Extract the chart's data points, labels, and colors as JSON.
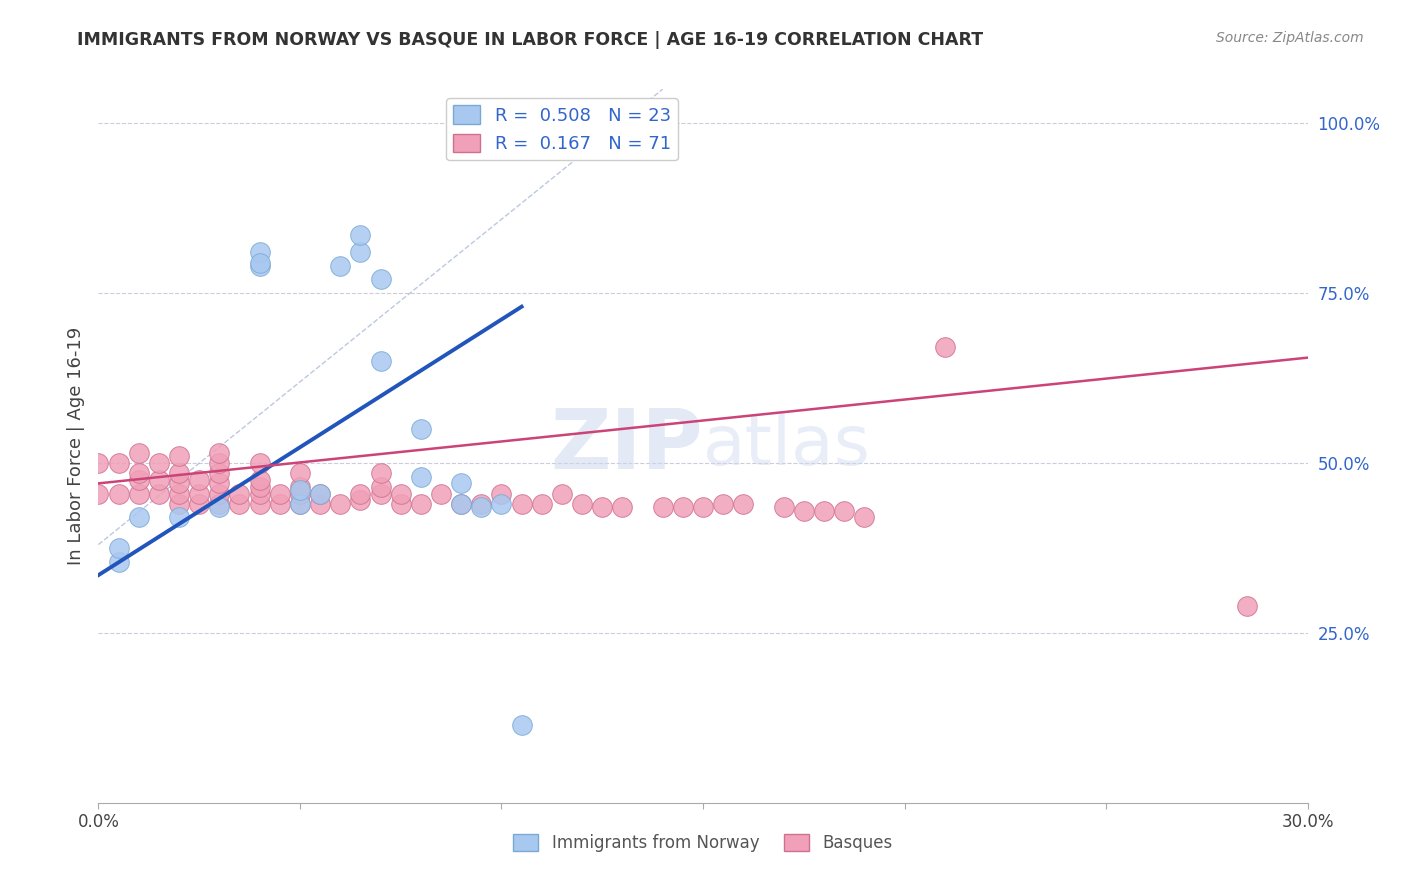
{
  "title": "IMMIGRANTS FROM NORWAY VS BASQUE IN LABOR FORCE | AGE 16-19 CORRELATION CHART",
  "source": "Source: ZipAtlas.com",
  "ylabel": "In Labor Force | Age 16-19",
  "xlim": [
    0.0,
    0.3
  ],
  "ylim": [
    0.0,
    1.05
  ],
  "xticks": [
    0.0,
    0.05,
    0.1,
    0.15,
    0.2,
    0.25,
    0.3
  ],
  "xticklabels": [
    "0.0%",
    "",
    "",
    "",
    "",
    "",
    "30.0%"
  ],
  "yticks_right": [
    0.25,
    0.5,
    0.75,
    1.0
  ],
  "ytick_right_labels": [
    "25.0%",
    "50.0%",
    "75.0%",
    "100.0%"
  ],
  "norway_color": "#a8c8f0",
  "norway_edge": "#7aaad4",
  "basque_color": "#f0a0b8",
  "basque_edge": "#d07090",
  "norway_R": 0.508,
  "norway_N": 23,
  "basque_R": 0.167,
  "basque_N": 71,
  "trend_norway_color": "#2255bb",
  "trend_basque_color": "#cc4477",
  "diag_color": "#aabbd8",
  "legend_R_color": "#3366cc",
  "background_color": "#ffffff",
  "grid_color": "#ccccdd",
  "watermark": "ZIPatlas",
  "norway_x": [
    0.005,
    0.005,
    0.01,
    0.02,
    0.03,
    0.04,
    0.04,
    0.04,
    0.05,
    0.05,
    0.055,
    0.06,
    0.065,
    0.065,
    0.07,
    0.07,
    0.08,
    0.08,
    0.09,
    0.09,
    0.095,
    0.1,
    0.105
  ],
  "norway_y": [
    0.355,
    0.375,
    0.42,
    0.42,
    0.435,
    0.79,
    0.81,
    0.795,
    0.44,
    0.46,
    0.455,
    0.79,
    0.81,
    0.835,
    0.65,
    0.77,
    0.55,
    0.48,
    0.44,
    0.47,
    0.435,
    0.44,
    0.115
  ],
  "basque_x": [
    0.0,
    0.0,
    0.005,
    0.005,
    0.01,
    0.01,
    0.01,
    0.01,
    0.015,
    0.015,
    0.015,
    0.02,
    0.02,
    0.02,
    0.02,
    0.02,
    0.025,
    0.025,
    0.025,
    0.03,
    0.03,
    0.03,
    0.03,
    0.03,
    0.03,
    0.035,
    0.035,
    0.04,
    0.04,
    0.04,
    0.04,
    0.04,
    0.045,
    0.045,
    0.05,
    0.05,
    0.05,
    0.05,
    0.055,
    0.055,
    0.06,
    0.065,
    0.065,
    0.07,
    0.07,
    0.07,
    0.075,
    0.075,
    0.08,
    0.085,
    0.09,
    0.095,
    0.1,
    0.105,
    0.11,
    0.115,
    0.12,
    0.125,
    0.13,
    0.14,
    0.145,
    0.15,
    0.155,
    0.16,
    0.17,
    0.175,
    0.18,
    0.185,
    0.19,
    0.21,
    0.285
  ],
  "basque_y": [
    0.455,
    0.5,
    0.455,
    0.5,
    0.455,
    0.475,
    0.485,
    0.515,
    0.455,
    0.475,
    0.5,
    0.44,
    0.455,
    0.47,
    0.485,
    0.51,
    0.44,
    0.455,
    0.475,
    0.44,
    0.455,
    0.47,
    0.485,
    0.5,
    0.515,
    0.44,
    0.455,
    0.44,
    0.455,
    0.465,
    0.475,
    0.5,
    0.44,
    0.455,
    0.44,
    0.455,
    0.465,
    0.485,
    0.44,
    0.455,
    0.44,
    0.445,
    0.455,
    0.455,
    0.465,
    0.485,
    0.44,
    0.455,
    0.44,
    0.455,
    0.44,
    0.44,
    0.455,
    0.44,
    0.44,
    0.455,
    0.44,
    0.435,
    0.435,
    0.435,
    0.435,
    0.435,
    0.44,
    0.44,
    0.435,
    0.43,
    0.43,
    0.43,
    0.42,
    0.67,
    0.29
  ]
}
